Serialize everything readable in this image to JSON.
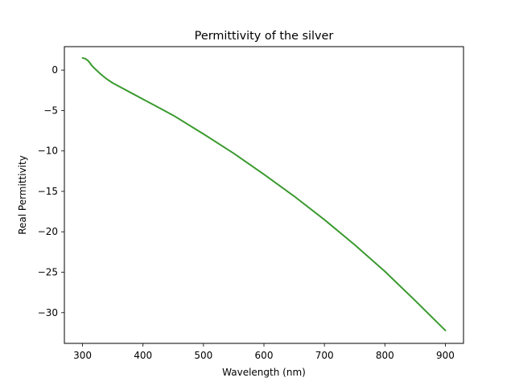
{
  "chart_data": {
    "type": "line",
    "title": "Permittivity of the silver",
    "xlabel": "Wavelength (nm)",
    "ylabel": "Real Permittivity",
    "xlim": [
      270,
      930
    ],
    "ylim": [
      -33.8,
      2.9
    ],
    "xticks": [
      300,
      400,
      500,
      600,
      700,
      800,
      900
    ],
    "yticks": [
      0,
      -5,
      -10,
      -15,
      -20,
      -25,
      -30
    ],
    "xtick_labels": [
      "300",
      "400",
      "500",
      "600",
      "700",
      "800",
      "900"
    ],
    "ytick_labels": [
      "0",
      "−5",
      "−10",
      "−15",
      "−20",
      "−25",
      "−30"
    ],
    "grid": false,
    "series": [
      {
        "color": "#3a9a2e",
        "x": [
          300,
          305,
          310,
          315,
          320,
          330,
          340,
          350,
          360,
          380,
          400,
          420,
          450,
          500,
          550,
          600,
          650,
          700,
          750,
          800,
          850,
          900
        ],
        "y": [
          1.5,
          1.4,
          1.1,
          0.6,
          0.2,
          -0.5,
          -1.1,
          -1.6,
          -2.0,
          -2.8,
          -3.6,
          -4.4,
          -5.6,
          -7.9,
          -10.3,
          -12.9,
          -15.6,
          -18.5,
          -21.6,
          -24.9,
          -28.5,
          -32.2
        ]
      }
    ]
  }
}
